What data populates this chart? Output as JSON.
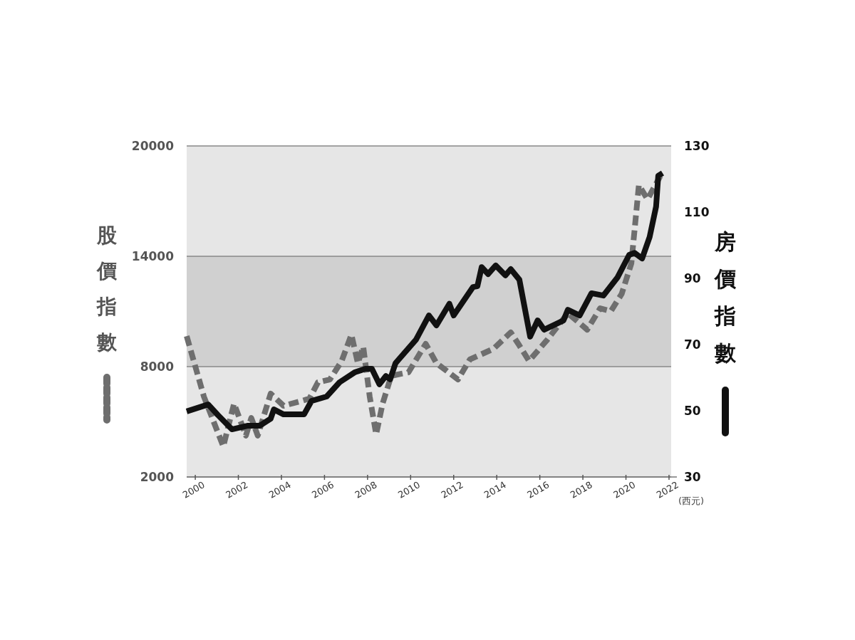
{
  "chart_data": {
    "type": "line",
    "xlabel": "(西元)",
    "ylabel": "股價指數",
    "y2label": "房價指數",
    "xlim": [
      1999.6,
      2022.1
    ],
    "xticks": [
      2000,
      2002,
      2004,
      2006,
      2008,
      2010,
      2012,
      2014,
      2016,
      2018,
      2020,
      2022
    ],
    "ylim": [
      2000,
      20000
    ],
    "yticks": [
      2000,
      8000,
      14000,
      20000
    ],
    "y2lim": [
      30,
      130
    ],
    "y2ticks": [
      30,
      50,
      70,
      90,
      110,
      130
    ],
    "grid": "y",
    "bands": [
      {
        "axis": "y",
        "from": 8000,
        "to": 14000,
        "color": "#d0d0d0"
      }
    ],
    "series": [
      {
        "color": "#6e6e6e",
        "line_style": "dashed",
        "x": [
          1999.6,
          2000.4,
          2001.3,
          2001.8,
          2002.35,
          2002.6,
          2002.9,
          2003.5,
          2004.1,
          2004.95,
          2005.3,
          2005.7,
          2006.25,
          2006.8,
          2007.25,
          2007.55,
          2007.8,
          2008.1,
          2008.4,
          2008.7,
          2009.1,
          2009.9,
          2010.7,
          2011.2,
          2012.2,
          2012.75,
          2013.85,
          2014.65,
          2015.0,
          2015.5,
          2016.35,
          2017.3,
          2018.2,
          2018.8,
          2019.3,
          2019.8,
          2020.25,
          2020.6,
          2021.0,
          2021.6
        ],
        "values": [
          9660,
          6370,
          3660,
          5990,
          4250,
          5210,
          4250,
          6530,
          5870,
          6140,
          6260,
          7150,
          7300,
          8310,
          9740,
          8190,
          9080,
          6370,
          4320,
          5990,
          7500,
          7690,
          9240,
          8190,
          7300,
          8390,
          8970,
          9860,
          9240,
          8310,
          9470,
          10900,
          10010,
          11170,
          11020,
          11950,
          13610,
          17870,
          17100,
          18370
        ]
      },
      {
        "color": "#111111",
        "line_style": "solid",
        "axis": "y2",
        "x": [
          1999.6,
          2000.6,
          2001.05,
          2001.7,
          2002.45,
          2003.0,
          2003.5,
          2003.65,
          2004.1,
          2005.05,
          2005.4,
          2006.1,
          2006.7,
          2007.4,
          2007.9,
          2008.2,
          2008.55,
          2008.85,
          2009.05,
          2009.3,
          2010.25,
          2010.85,
          2011.2,
          2011.8,
          2012.0,
          2012.9,
          2013.1,
          2013.3,
          2013.6,
          2013.95,
          2014.4,
          2014.65,
          2015.05,
          2015.55,
          2015.9,
          2016.2,
          2017.1,
          2017.3,
          2017.85,
          2018.4,
          2018.95,
          2019.6,
          2020.15,
          2020.4,
          2020.75,
          2021.1,
          2021.4,
          2021.5,
          2021.7
        ],
        "values": [
          49.8,
          51.9,
          48.7,
          44.4,
          45.5,
          45.5,
          47.6,
          50.4,
          48.9,
          48.9,
          53.0,
          54.3,
          58.6,
          61.6,
          62.7,
          62.7,
          58.0,
          60.5,
          59.5,
          64.4,
          71.5,
          78.8,
          75.8,
          82.3,
          78.8,
          87.4,
          87.6,
          93.4,
          91.3,
          93.9,
          90.9,
          92.8,
          89.6,
          72.4,
          77.3,
          74.5,
          77.3,
          80.5,
          78.8,
          85.5,
          84.8,
          90.2,
          97.1,
          97.7,
          96.0,
          102.5,
          111.7,
          121.0,
          121.8
        ]
      }
    ]
  }
}
